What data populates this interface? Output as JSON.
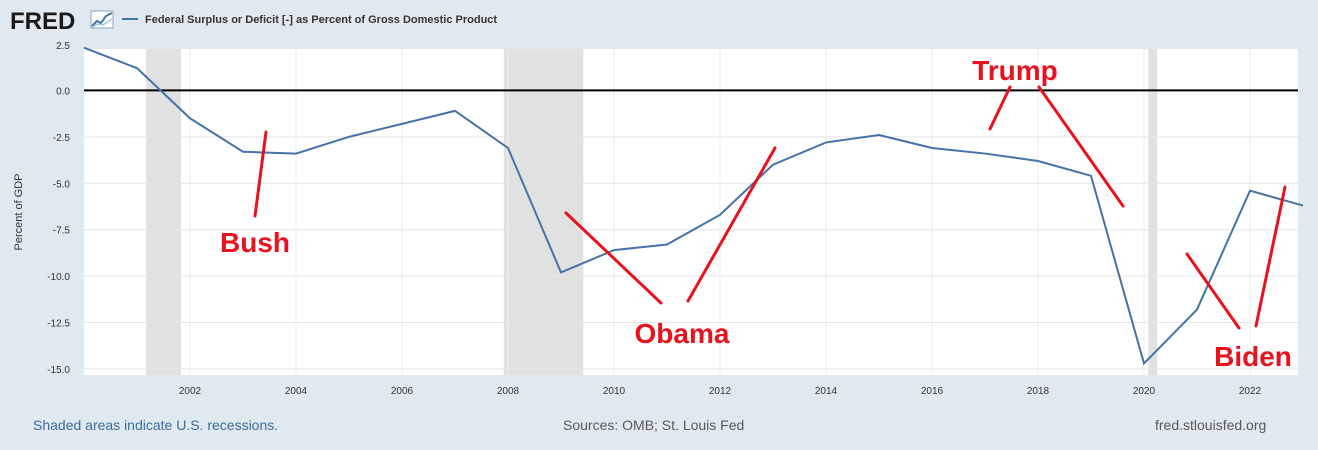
{
  "header": {
    "logo": "FRED",
    "legend_label": "Federal Surplus or Deficit [-] as Percent of Gross Domestic Product"
  },
  "footer": {
    "recession_note": "Shaded areas indicate U.S. recessions.",
    "sources": "Sources: OMB; St. Louis Fed",
    "site": "fred.stlouisfed.org"
  },
  "colors": {
    "series": "#4572a7",
    "recession": "#e1e1e1",
    "annotation": "#e8111e",
    "zero_line": "#000000"
  },
  "chart_data": {
    "type": "line",
    "title": "",
    "xlabel": "",
    "ylabel": "Percent of GDP",
    "xlim": [
      2000,
      2023
    ],
    "ylim": [
      -15.0,
      2.5
    ],
    "grid": true,
    "legend": "top-left",
    "x_ticks": [
      2002,
      2004,
      2006,
      2008,
      2010,
      2012,
      2014,
      2016,
      2018,
      2020,
      2022
    ],
    "y_ticks": [
      2.5,
      0.0,
      -2.5,
      -5.0,
      -7.5,
      -10.0,
      -12.5,
      -15.0
    ],
    "y_tick_labels": [
      "2.5",
      "0.0",
      "-2.5",
      "-5.0",
      "-7.5",
      "-10.0",
      "-12.5",
      "-15.0"
    ],
    "recessions": [
      [
        2001.17,
        2001.83
      ],
      [
        2007.92,
        2009.42
      ],
      [
        2020.08,
        2020.25
      ]
    ],
    "reference_line": 0,
    "series": [
      {
        "name": "Federal Surplus or Deficit [-] as Percent of Gross Domestic Product",
        "x": [
          2000,
          2001,
          2002,
          2003,
          2004,
          2005,
          2006,
          2007,
          2008,
          2009,
          2010,
          2011,
          2012,
          2013,
          2014,
          2015,
          2016,
          2017,
          2018,
          2019,
          2020,
          2021,
          2022,
          2023
        ],
        "y": [
          2.3,
          1.2,
          -1.5,
          -3.3,
          -3.4,
          -2.5,
          -1.8,
          -1.1,
          -3.1,
          -9.8,
          -8.6,
          -8.3,
          -6.7,
          -4.0,
          -2.8,
          -2.4,
          -3.1,
          -3.4,
          -3.8,
          -4.6,
          -14.7,
          -11.8,
          -5.4,
          -6.2
        ]
      }
    ],
    "annotations": [
      {
        "text": "Bush"
      },
      {
        "text": "Obama"
      },
      {
        "text": "Trump"
      },
      {
        "text": "Biden"
      }
    ]
  }
}
